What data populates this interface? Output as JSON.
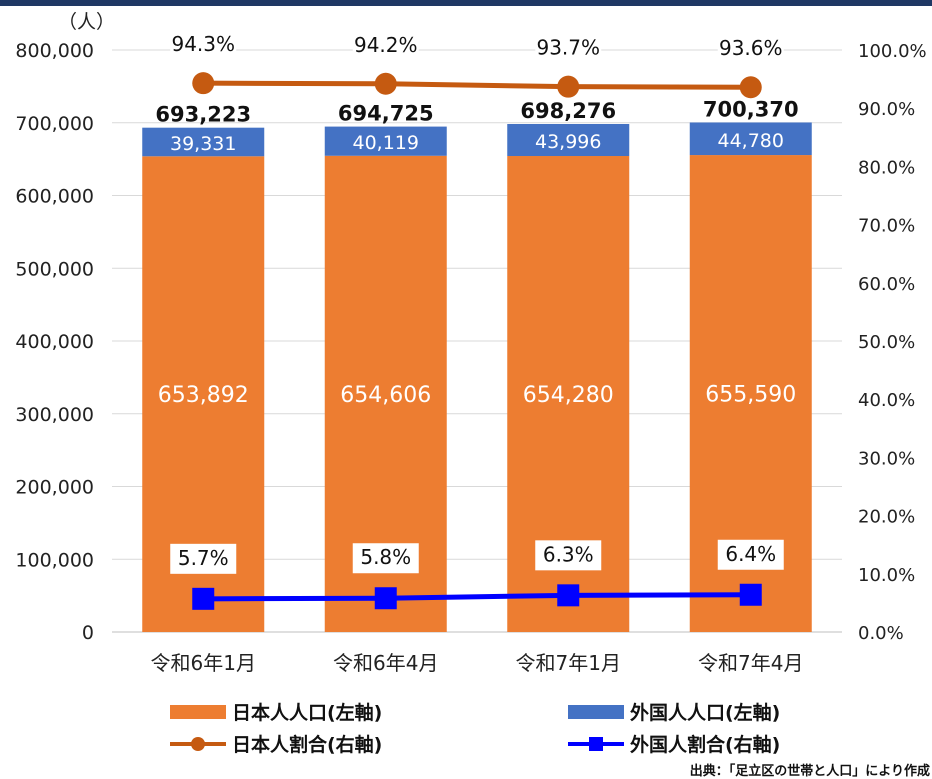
{
  "chart_data": {
    "type": "bar",
    "stacked": true,
    "unit_label": "（人）",
    "categories": [
      "令和6年1月",
      "令和6年4月",
      "令和7年1月",
      "令和7年4月"
    ],
    "series": [
      {
        "name": "日本人人口(左軸)",
        "axis": "left",
        "type": "bar",
        "color": "#ed7d31",
        "values": [
          653892,
          654606,
          654280,
          655590
        ],
        "labels": [
          "653,892",
          "654,606",
          "654,280",
          "655,590"
        ]
      },
      {
        "name": "外国人人口(左軸)",
        "axis": "left",
        "type": "bar",
        "color": "#4472c4",
        "values": [
          39331,
          40119,
          43996,
          44780
        ],
        "labels": [
          "39,331",
          "40,119",
          "43,996",
          "44,780"
        ]
      },
      {
        "name": "日本人割合(右軸)",
        "axis": "right",
        "type": "line",
        "marker": "circle",
        "color": "#c55a11",
        "values": [
          94.3,
          94.2,
          93.7,
          93.6
        ],
        "labels": [
          "94.3%",
          "94.2%",
          "93.7%",
          "93.6%"
        ]
      },
      {
        "name": "外国人割合(右軸)",
        "axis": "right",
        "type": "line",
        "marker": "square",
        "color": "#0000ff",
        "values": [
          5.7,
          5.8,
          6.3,
          6.4
        ],
        "labels": [
          "5.7%",
          "5.8%",
          "6.3%",
          "6.4%"
        ]
      }
    ],
    "totals": [
      693223,
      694725,
      698276,
      700370
    ],
    "total_labels": [
      "693,223",
      "694,725",
      "698,276",
      "700,370"
    ],
    "y_left": {
      "min": 0,
      "max": 800000,
      "ticks": [
        0,
        100000,
        200000,
        300000,
        400000,
        500000,
        600000,
        700000,
        800000
      ],
      "tick_labels": [
        "0",
        "100,000",
        "200,000",
        "300,000",
        "400,000",
        "500,000",
        "600,000",
        "700,000",
        "800,000"
      ]
    },
    "y_right": {
      "min": 0,
      "max": 100,
      "ticks": [
        0,
        10,
        20,
        30,
        40,
        50,
        60,
        70,
        80,
        90,
        100
      ],
      "tick_labels": [
        "0.0%",
        "10.0%",
        "20.0%",
        "30.0%",
        "40.0%",
        "50.0%",
        "60.0%",
        "70.0%",
        "80.0%",
        "90.0%",
        "100.0%"
      ]
    },
    "grid": true,
    "legend_position": "bottom"
  },
  "source_note": "出典：「足立区の世帯と人口」により作成"
}
